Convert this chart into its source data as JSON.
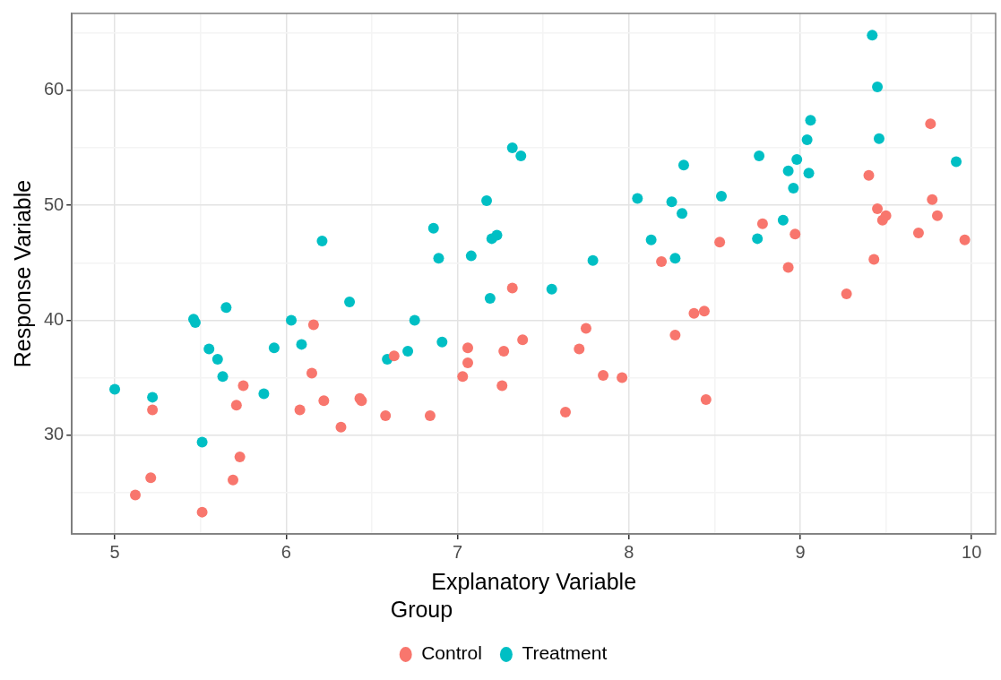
{
  "chart_data": {
    "type": "scatter",
    "xlabel": "Explanatory Variable",
    "ylabel": "Response Variable",
    "legend_title": "Group",
    "legend": "bottom",
    "grid": true,
    "marker": "circle",
    "xlim": [
      4.75,
      10.14
    ],
    "ylim": [
      21.4,
      66.7
    ],
    "xticks": [
      5,
      {
        "value": 5.5,
        "label": null
      },
      6,
      {
        "value": 6.5,
        "label": null
      },
      7,
      {
        "value": 7.5,
        "label": null
      },
      8,
      {
        "value": 8.5,
        "label": null
      },
      9,
      {
        "value": 9.5,
        "label": null
      },
      10
    ],
    "yticks": [
      {
        "value": 25,
        "label": null
      },
      30,
      {
        "value": 35,
        "label": null
      },
      40,
      {
        "value": 45,
        "label": null
      },
      50,
      {
        "value": 55,
        "label": null
      },
      60,
      {
        "value": 65,
        "label": null
      }
    ],
    "series": [
      {
        "name": "Control",
        "color": "#f8766d",
        "x": [
          5.12,
          5.21,
          5.22,
          5.51,
          5.69,
          5.71,
          5.73,
          5.75,
          6.08,
          6.15,
          6.16,
          6.22,
          6.32,
          6.43,
          6.44,
          6.58,
          6.63,
          6.84,
          7.03,
          7.06,
          7.06,
          7.26,
          7.27,
          7.32,
          7.38,
          7.63,
          7.71,
          7.75,
          7.85,
          7.96,
          8.19,
          8.27,
          8.38,
          8.44,
          8.45,
          8.53,
          8.78,
          8.93,
          8.97,
          9.27,
          9.4,
          9.43,
          9.45,
          9.48,
          9.5,
          9.69,
          9.76,
          9.77,
          9.8,
          9.96
        ],
        "values": [
          24.8,
          26.3,
          32.2,
          23.3,
          26.1,
          32.6,
          28.1,
          34.3,
          32.2,
          35.4,
          39.6,
          33.0,
          30.7,
          33.2,
          33.0,
          31.7,
          36.9,
          31.7,
          35.1,
          37.6,
          36.3,
          34.3,
          37.3,
          42.8,
          38.3,
          32.0,
          37.5,
          39.3,
          35.2,
          35.0,
          45.1,
          38.7,
          40.6,
          40.8,
          33.1,
          46.8,
          48.4,
          44.6,
          47.5,
          42.3,
          52.6,
          45.3,
          49.7,
          48.7,
          49.1,
          47.6,
          57.1,
          50.5,
          49.1,
          47.0
        ]
      },
      {
        "name": "Treatment",
        "color": "#00bfc4",
        "x": [
          5.0,
          5.22,
          5.46,
          5.47,
          5.51,
          5.55,
          5.6,
          5.63,
          5.65,
          5.87,
          5.93,
          6.03,
          6.09,
          6.21,
          6.37,
          6.59,
          6.71,
          6.75,
          6.86,
          6.89,
          6.91,
          7.08,
          7.17,
          7.19,
          7.2,
          7.23,
          7.32,
          7.37,
          7.55,
          7.79,
          8.05,
          8.13,
          8.25,
          8.27,
          8.31,
          8.32,
          8.54,
          8.75,
          8.76,
          8.9,
          8.93,
          8.96,
          8.98,
          9.04,
          9.05,
          9.06,
          9.42,
          9.45,
          9.46,
          9.91
        ],
        "values": [
          34.0,
          33.3,
          40.1,
          39.8,
          29.4,
          37.5,
          36.6,
          35.1,
          41.1,
          33.6,
          37.6,
          40.0,
          37.9,
          46.9,
          41.6,
          36.6,
          37.3,
          40.0,
          48.0,
          45.4,
          38.1,
          45.6,
          50.4,
          41.9,
          47.1,
          47.4,
          55.0,
          54.3,
          42.7,
          45.2,
          50.6,
          47.0,
          50.3,
          45.4,
          49.3,
          53.5,
          50.8,
          47.1,
          54.3,
          48.7,
          53.0,
          51.5,
          54.0,
          55.7,
          52.8,
          57.4,
          64.8,
          60.3,
          55.8,
          53.8
        ]
      }
    ]
  }
}
